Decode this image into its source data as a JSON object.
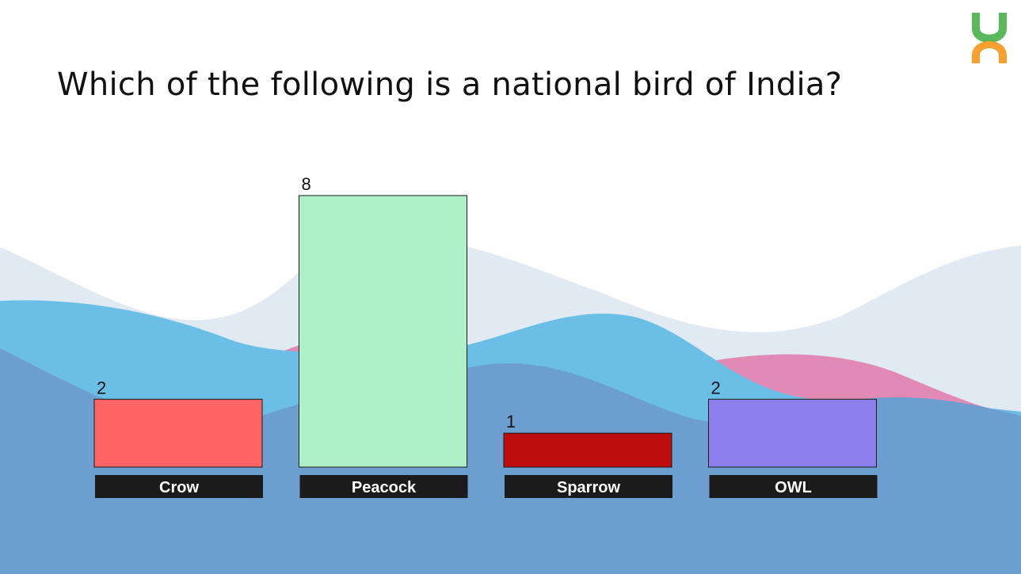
{
  "question": {
    "text": "Which of the following is a national bird of India?"
  },
  "logo": {
    "icon": "brand-logo-icon",
    "colors": {
      "green": "#5cb85c",
      "orange": "#f5a030"
    }
  },
  "background": {
    "colors": {
      "wave_light": "#e1eaf3",
      "wave_pink": "#e08ab5",
      "wave_cyan": "#6bbfe6",
      "wave_base": "#6c9fcf"
    }
  },
  "chart_data": {
    "type": "bar",
    "categories": [
      "Crow",
      "Peacock",
      "Sparrow",
      "OWL"
    ],
    "values": [
      2,
      8,
      1,
      2
    ],
    "colors": [
      "#ff6464",
      "#aff0c8",
      "#bd0d0e",
      "#8f7fec"
    ],
    "label_bg": "#1b1b1b",
    "title": "",
    "xlabel": "",
    "ylabel": "",
    "ylim": [
      0,
      8
    ],
    "grid": false
  }
}
